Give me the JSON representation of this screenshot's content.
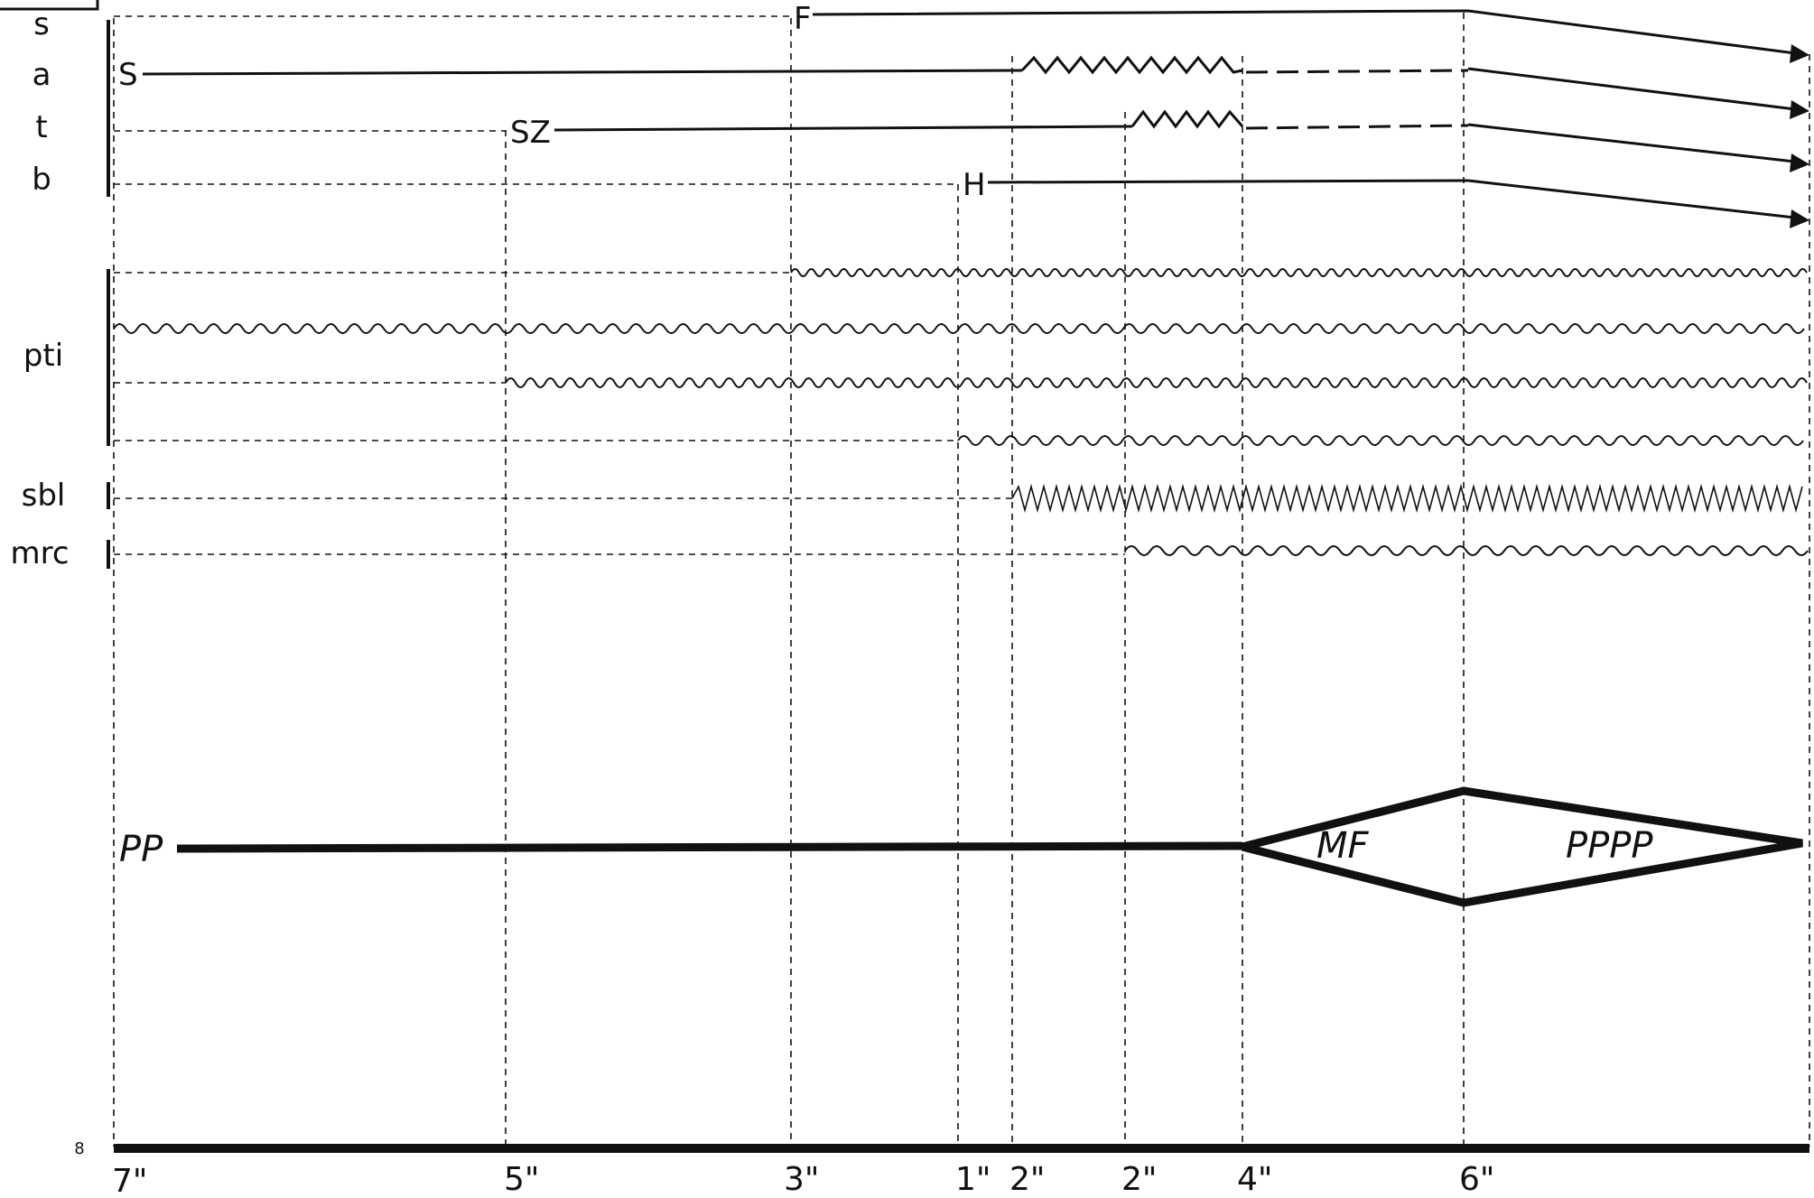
{
  "voices": {
    "s": "s",
    "a": "a",
    "t": "t",
    "b": "b",
    "pti": "pti",
    "sbl": "sbl",
    "mrc": "mrc"
  },
  "cues": {
    "soprano_entry": "F",
    "alto_entry": "S",
    "tenor_entry": "SZ",
    "bass_entry": "H"
  },
  "dynamics": {
    "start": "PP",
    "peak": "MF",
    "end": "PPPP"
  },
  "page_number": "8",
  "durations": [
    "7\"",
    "5\"",
    "3\"",
    "1\"",
    "2\"",
    "2\"",
    "4\"",
    "6\""
  ]
}
